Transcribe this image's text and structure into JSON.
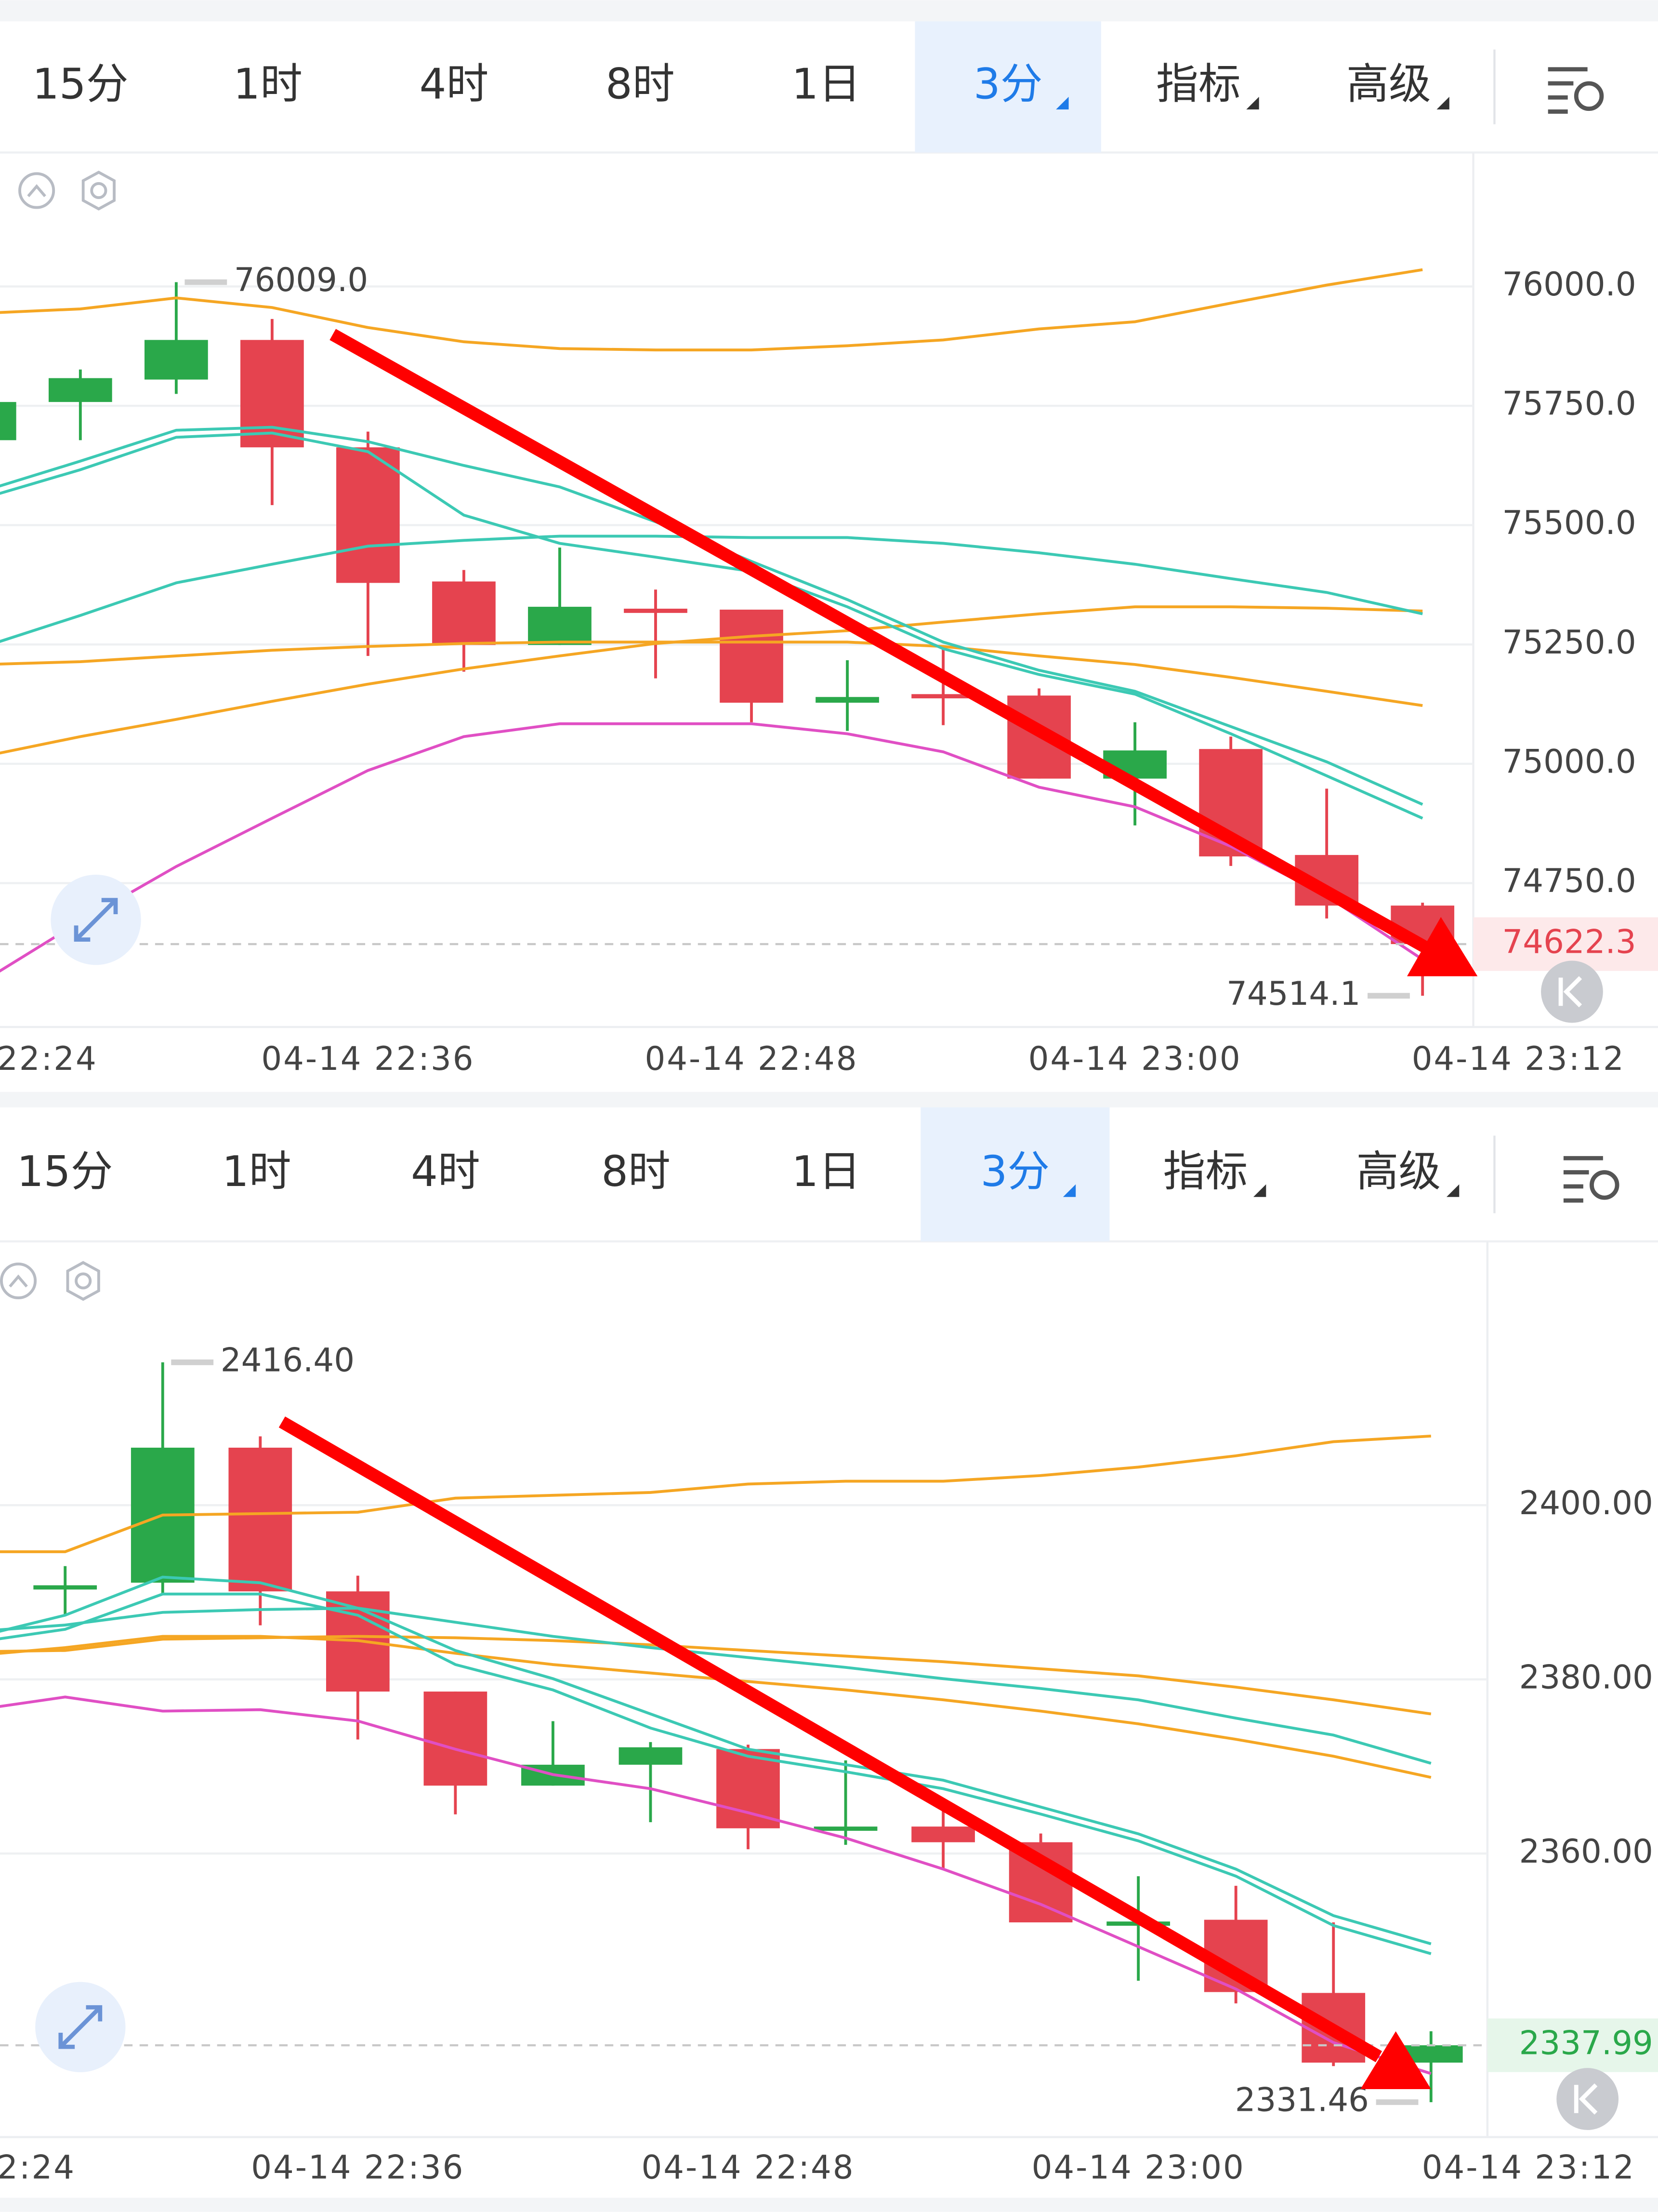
{
  "toolbars": [
    {
      "tabs": [
        "15分",
        "1时",
        "4时",
        "8时",
        "1日",
        "3分",
        "指标",
        "高级"
      ],
      "selected": 5
    },
    {
      "tabs": [
        "15分",
        "1时",
        "4时",
        "8时",
        "1日",
        "3分",
        "指标",
        "高级"
      ],
      "selected": 5
    }
  ],
  "chart_data": [
    {
      "type": "candlestick",
      "categories": [
        "22:24",
        null,
        null,
        null,
        "04-14 22:36",
        null,
        null,
        null,
        "04-14 22:48",
        null,
        null,
        null,
        "04-14 23:00",
        null,
        null,
        null,
        "04-14 23:12"
      ],
      "open": [
        75678,
        75758,
        75805,
        75888,
        75663,
        75382,
        75249,
        75325,
        75323,
        75128,
        75146,
        75143,
        74969,
        75031,
        74809,
        74703,
        null
      ],
      "high": [
        75770,
        75826,
        76009,
        75932,
        75696,
        75406,
        75453,
        75365,
        75323,
        75217,
        75247,
        75158,
        75087,
        75057,
        74948,
        74709,
        null
      ],
      "low": [
        75670,
        75678,
        75775,
        75542,
        75226,
        75193,
        75249,
        75179,
        75087,
        75069,
        75081,
        74969,
        74871,
        74786,
        74676,
        74514.1,
        null
      ],
      "close": [
        75758,
        75808,
        75888,
        75663,
        75379,
        75249,
        75329,
        75321,
        75128,
        75140,
        75143,
        74969,
        75028,
        74806,
        74703,
        74622.3,
        null
      ],
      "up_color": "#2aa84a",
      "down_color": "#e5434f",
      "series": [
        {
          "color": "#f5a623",
          "values": [
            75944,
            75953,
            75976,
            75956,
            75914,
            75884,
            75870,
            75867,
            75867,
            75876,
            75888,
            75911,
            75926,
            75965,
            76003,
            76035,
            null
          ]
        },
        {
          "color": "#f5a623",
          "values": [
            75208,
            75214,
            75226,
            75238,
            75246,
            75252,
            75255,
            75255,
            75255,
            75255,
            75246,
            75226,
            75208,
            75181,
            75152,
            75122,
            null
          ]
        },
        {
          "color": "#f5a623",
          "values": [
            75016,
            75057,
            75093,
            75131,
            75167,
            75199,
            75226,
            75252,
            75267,
            75279,
            75297,
            75314,
            75329,
            75329,
            75326,
            75320,
            null
          ]
        },
        {
          "color": "#3cc9b4",
          "values": [
            75572,
            75634,
            75699,
            75705,
            75675,
            75625,
            75580,
            75507,
            75424,
            75344,
            75255,
            75196,
            75152,
            75078,
            75004,
            74915,
            null
          ]
        },
        {
          "color": "#3cc9b4",
          "values": [
            75557,
            75616,
            75684,
            75693,
            75654,
            75521,
            75462,
            75433,
            75403,
            75329,
            75241,
            75187,
            75146,
            75063,
            74975,
            74886,
            null
          ]
        },
        {
          "color": "#3cc9b4",
          "values": [
            75246,
            75311,
            75379,
            75418,
            75456,
            75468,
            75477,
            75477,
            75474,
            75474,
            75462,
            75442,
            75418,
            75388,
            75359,
            75314,
            null
          ]
        },
        {
          "color": "#e04fc4",
          "values": [
            74546,
            74670,
            74785,
            74886,
            74986,
            75057,
            75084,
            75084,
            75084,
            75063,
            75025,
            74951,
            74910,
            74827,
            74723,
            74590,
            null
          ]
        }
      ],
      "ylim": [
        74448.6,
        76280.7
      ],
      "yticks": [
        {
          "value": 74750,
          "label": "74750.0"
        },
        {
          "value": 75000,
          "label": "75000.0"
        },
        {
          "value": 75250,
          "label": "75250.0"
        },
        {
          "value": 75500,
          "label": "75500.0"
        },
        {
          "value": 75750,
          "label": "75750.0"
        },
        {
          "value": 76000,
          "label": "76000.0"
        }
      ],
      "grid": true,
      "high_marker": {
        "value": 76009,
        "label": "76009.0"
      },
      "low_marker": {
        "value": 74514.1,
        "label": "74514.1"
      },
      "last_price": {
        "value": 74622.3,
        "label": "74622.3"
      }
    },
    {
      "type": "candlestick",
      "categories": [
        "2:24",
        null,
        null,
        null,
        "04-14 22:36",
        null,
        null,
        null,
        "04-14 22:48",
        null,
        null,
        null,
        "04-14 23:00",
        null,
        null,
        null,
        "04-14 23:12"
      ],
      "open": [
        null,
        2390.8,
        2391.1,
        2406.6,
        2390.1,
        2378.6,
        2367.8,
        2370.2,
        2372.0,
        2362.9,
        2363.1,
        2361.3,
        2352.1,
        2352.4,
        2344.0,
        2336.0,
        null
      ],
      "high": [
        null,
        2393.0,
        2416.4,
        2407.9,
        2391.9,
        2378.6,
        2375.2,
        2372.8,
        2372.5,
        2370.7,
        2365.7,
        2362.3,
        2357.4,
        2356.3,
        2352.1,
        2339.6,
        null
      ],
      "low": [
        null,
        2387.4,
        2389.8,
        2386.2,
        2373.1,
        2364.5,
        2367.8,
        2363.6,
        2360.5,
        2361.0,
        2358.1,
        2352.1,
        2345.4,
        2342.8,
        2335.6,
        2331.46,
        null
      ],
      "close": [
        null,
        2390.8,
        2406.6,
        2390.1,
        2378.6,
        2367.8,
        2370.2,
        2372.2,
        2362.9,
        2363.1,
        2361.3,
        2352.1,
        2352.2,
        2344.1,
        2336.0,
        2337.99,
        null
      ],
      "up_color": "#2aa84a",
      "down_color": "#e5434f",
      "series": [
        {
          "color": "#f5a623",
          "values": [
            2394.66,
            2394.66,
            2398.87,
            2399.03,
            2399.19,
            2400.81,
            2401.13,
            2401.46,
            2402.43,
            2402.75,
            2402.75,
            2403.4,
            2404.37,
            2405.67,
            2407.29,
            2407.94,
            null
          ]
        },
        {
          "color": "#f5a623",
          "values": [
            2383.16,
            2383.32,
            2384.62,
            2384.78,
            2384.94,
            2384.78,
            2384.45,
            2383.97,
            2383.32,
            2382.67,
            2382.02,
            2381.22,
            2380.41,
            2379.11,
            2377.65,
            2376.03,
            null
          ]
        },
        {
          "color": "#f5a623",
          "values": [
            2382.67,
            2383.64,
            2384.94,
            2384.94,
            2384.45,
            2383.0,
            2381.7,
            2380.73,
            2379.76,
            2378.79,
            2377.65,
            2376.36,
            2374.9,
            2373.12,
            2371.17,
            2368.75,
            null
          ]
        },
        {
          "color": "#3cc9b4",
          "values": [
            2384.62,
            2387.37,
            2391.74,
            2391.09,
            2388.18,
            2383.32,
            2380.08,
            2376.03,
            2371.98,
            2370.2,
            2368.42,
            2365.34,
            2362.27,
            2358.22,
            2352.88,
            2349.64,
            null
          ]
        },
        {
          "color": "#3cc9b4",
          "values": [
            2384.13,
            2385.75,
            2389.8,
            2389.8,
            2387.37,
            2381.7,
            2378.79,
            2374.41,
            2371.17,
            2369.39,
            2367.45,
            2364.53,
            2361.46,
            2357.41,
            2351.74,
            2348.5,
            null
          ]
        },
        {
          "color": "#3cc9b4",
          "values": [
            2385.43,
            2386.24,
            2387.69,
            2388.02,
            2388.18,
            2386.56,
            2384.94,
            2383.64,
            2382.51,
            2381.38,
            2380.08,
            2378.95,
            2377.65,
            2375.55,
            2373.6,
            2370.36,
            null
          ]
        },
        {
          "color": "#e04fc4",
          "values": [
            2376.36,
            2377.98,
            2376.36,
            2376.52,
            2375.22,
            2371.98,
            2369.07,
            2367.45,
            2364.7,
            2361.78,
            2358.22,
            2354.17,
            2349.31,
            2344.45,
            2338.3,
            2334.74,
            null
          ]
        }
      ],
      "ylim": [
        2327.45,
        2430.28
      ],
      "yticks": [
        {
          "value": 2360,
          "label": "2360.00"
        },
        {
          "value": 2380,
          "label": "2380.00"
        },
        {
          "value": 2400,
          "label": "2400.00"
        }
      ],
      "grid": true,
      "high_marker": {
        "value": 2416.4,
        "label": "2416.40"
      },
      "low_marker": {
        "value": 2331.46,
        "label": "2331.46"
      },
      "last_price": {
        "value": 2337.99,
        "label": "2337.99"
      }
    }
  ]
}
